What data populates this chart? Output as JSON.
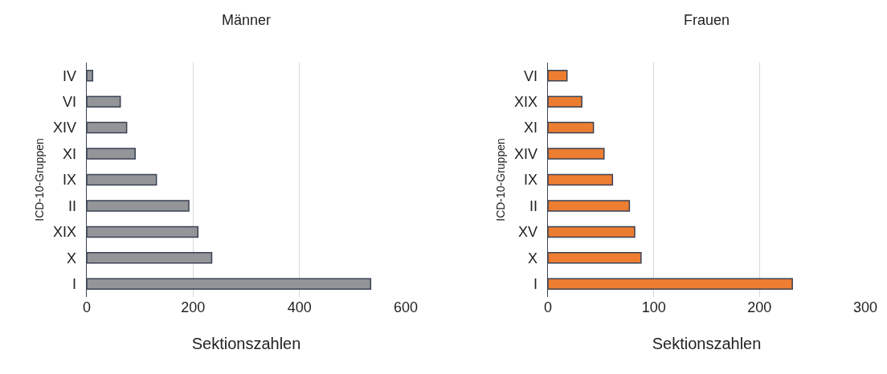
{
  "chart_data": [
    {
      "type": "bar",
      "orientation": "horizontal",
      "title": "Männer",
      "xlabel": "Sektionszahlen",
      "ylabel": "ICD-10-Gruppen",
      "categories": [
        "IV",
        "VI",
        "XIV",
        "XI",
        "IX",
        "II",
        "XIX",
        "X",
        "I"
      ],
      "values": [
        11,
        63,
        75,
        91,
        131,
        192,
        209,
        235,
        534
      ],
      "color": "#939598",
      "xlim": [
        0,
        600
      ],
      "xticks": [
        0,
        200,
        400,
        600
      ],
      "grid": "x"
    },
    {
      "type": "bar",
      "orientation": "horizontal",
      "title": "Frauen",
      "xlabel": "Sektionszahlen",
      "ylabel": "ICD-10-Gruppen",
      "categories": [
        "VI",
        "XIX",
        "XI",
        "XIV",
        "IX",
        "II",
        "XV",
        "X",
        "I"
      ],
      "values": [
        18,
        32,
        43,
        53,
        61,
        77,
        82,
        88,
        231
      ],
      "color": "#ed7d31",
      "xlim": [
        0,
        300
      ],
      "xticks": [
        0,
        100,
        200,
        300
      ],
      "grid": "x"
    }
  ]
}
